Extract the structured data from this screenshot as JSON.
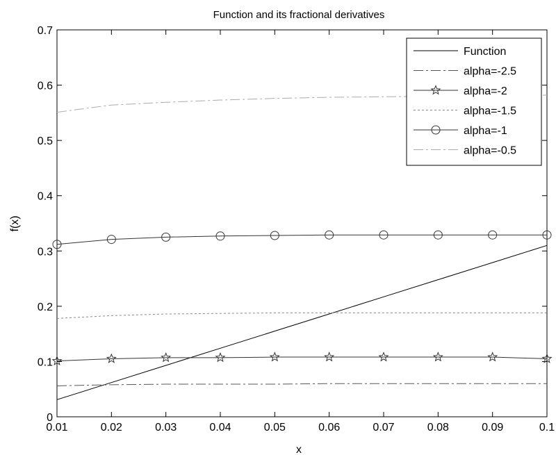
{
  "chart_data": {
    "type": "line",
    "title": "Function and its fractional derivatives",
    "xlabel": "x",
    "ylabel": "f(x)",
    "xlim": [
      0.01,
      0.1
    ],
    "ylim": [
      0,
      0.7
    ],
    "xticks": [
      "0.01",
      "0.02",
      "0.03",
      "0.04",
      "0.05",
      "0.06",
      "0.07",
      "0.08",
      "0.09",
      "0.1"
    ],
    "xtick_values": [
      0.01,
      0.02,
      0.03,
      0.04,
      0.05,
      0.06,
      0.07,
      0.08,
      0.09,
      0.1
    ],
    "yticks": [
      "0",
      "0.1",
      "0.2",
      "0.3",
      "0.4",
      "0.5",
      "0.6",
      "0.7"
    ],
    "ytick_values": [
      0,
      0.1,
      0.2,
      0.3,
      0.4,
      0.5,
      0.6,
      0.7
    ],
    "grid": false,
    "legend_position": "top-right",
    "x": [
      0.01,
      0.02,
      0.03,
      0.04,
      0.05,
      0.06,
      0.07,
      0.08,
      0.09,
      0.1
    ],
    "series": [
      {
        "name": "Function",
        "values": [
          0.031,
          0.062,
          0.093,
          0.124,
          0.155,
          0.186,
          0.217,
          0.248,
          0.279,
          0.31
        ],
        "color": "#000000",
        "dash": "solid",
        "marker": "none"
      },
      {
        "name": "alpha=-2.5",
        "values": [
          0.056,
          0.058,
          0.059,
          0.059,
          0.059,
          0.06,
          0.06,
          0.06,
          0.06,
          0.06
        ],
        "color": "#555555",
        "dash": "dashdot",
        "marker": "none"
      },
      {
        "name": "alpha=-2",
        "values": [
          0.101,
          0.105,
          0.107,
          0.107,
          0.108,
          0.108,
          0.108,
          0.108,
          0.108,
          0.105
        ],
        "color": "#333333",
        "dash": "solid",
        "marker": "star"
      },
      {
        "name": "alpha=-1.5",
        "values": [
          0.178,
          0.183,
          0.186,
          0.187,
          0.188,
          0.188,
          0.188,
          0.188,
          0.188,
          0.188
        ],
        "color": "#888888",
        "dash": "dotted",
        "marker": "none"
      },
      {
        "name": "alpha=-1",
        "values": [
          0.312,
          0.321,
          0.325,
          0.327,
          0.328,
          0.329,
          0.329,
          0.329,
          0.329,
          0.329
        ],
        "color": "#333333",
        "dash": "solid",
        "marker": "circle"
      },
      {
        "name": "alpha=-0.5",
        "values": [
          0.551,
          0.564,
          0.569,
          0.573,
          0.576,
          0.578,
          0.579,
          0.58,
          0.581,
          0.582
        ],
        "color": "#aaaaaa",
        "dash": "dashdot",
        "marker": "none"
      }
    ]
  }
}
